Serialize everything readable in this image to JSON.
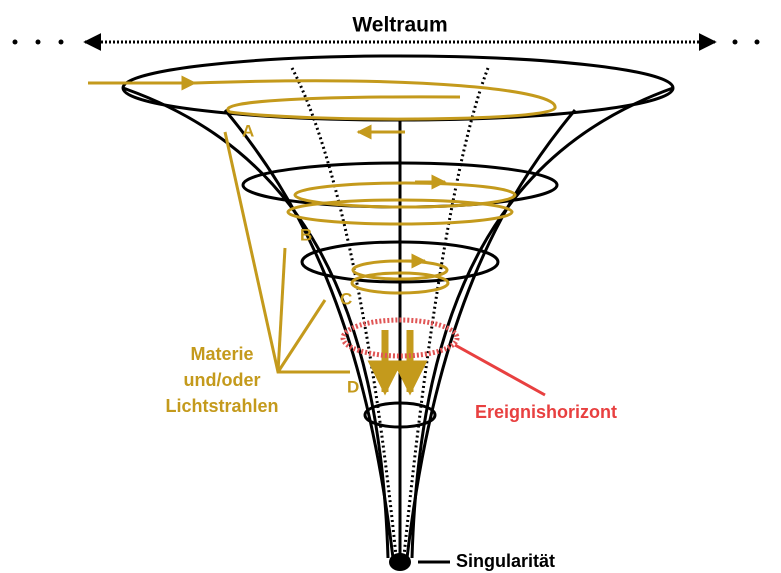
{
  "title": "Weltraum",
  "points": [
    "A",
    "B",
    "C",
    "D"
  ],
  "matter_label": [
    "Materie",
    "und/oder",
    "Lichtstrahlen"
  ],
  "event_horizon": "Ereignishorizont",
  "singularity": "Singularität"
}
